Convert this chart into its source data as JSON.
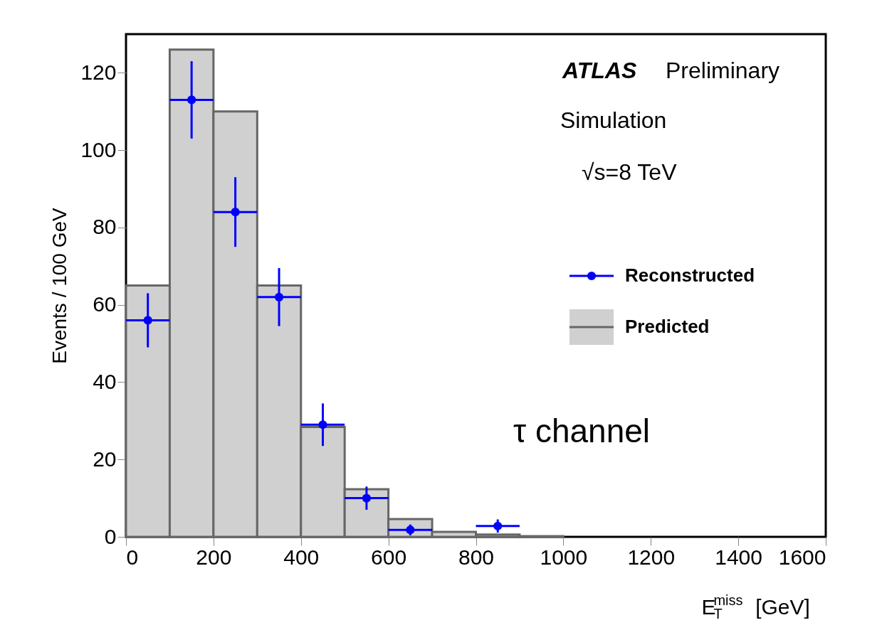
{
  "chart_data": {
    "type": "histogram",
    "xlabel": "E$_{T}$$^{miss}$ [GeV]",
    "ylabel": "Events / 100 GeV",
    "bins": [
      0,
      100,
      200,
      300,
      400,
      500,
      600,
      700,
      800,
      900,
      1000
    ],
    "series": [
      {
        "name": "Reconstructed",
        "type": "scatter",
        "color": "#0000ff",
        "x": [
          50,
          150,
          250,
          350,
          450,
          550,
          650,
          850
        ],
        "values": [
          56,
          113,
          84,
          62,
          29,
          10,
          1.8,
          2.8
        ],
        "errors": [
          7,
          10,
          9,
          7.5,
          5.5,
          3,
          1.4,
          1.7
        ],
        "xerrors": [
          50,
          50,
          50,
          50,
          50,
          50,
          50,
          50
        ]
      },
      {
        "name": "Predicted",
        "type": "histogram",
        "color": "#d0d0d0",
        "values": [
          65,
          126,
          110,
          65,
          28.4,
          12.3,
          4.6,
          1.3,
          0.6,
          0.2
        ]
      }
    ],
    "xlim": [
      0,
      1600
    ],
    "ylim": [
      0,
      130
    ],
    "xticks": [
      0,
      200,
      400,
      600,
      800,
      1000,
      1200,
      1400,
      1600
    ],
    "yticks": [
      0,
      20,
      40,
      60,
      80,
      100,
      120
    ],
    "grid": false,
    "legend": "right",
    "marker": "circle",
    "annotations": [
      "ATLAS",
      "Preliminary",
      "Simulation",
      "√s=8 TeV",
      "τ channel"
    ]
  }
}
